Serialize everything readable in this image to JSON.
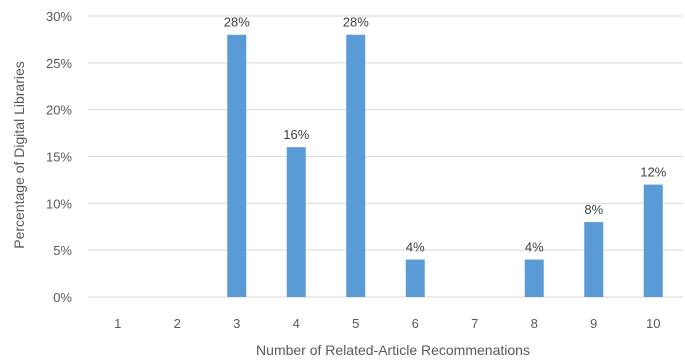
{
  "chart_data": {
    "type": "bar",
    "categories": [
      "1",
      "2",
      "3",
      "4",
      "5",
      "6",
      "7",
      "8",
      "9",
      "10"
    ],
    "values": [
      0,
      0,
      28,
      16,
      28,
      4,
      0,
      4,
      8,
      12
    ],
    "data_labels": [
      "",
      "",
      "28%",
      "16%",
      "28%",
      "4%",
      "",
      "4%",
      "8%",
      "12%"
    ],
    "y_ticks": [
      0,
      5,
      10,
      15,
      20,
      25,
      30
    ],
    "y_tick_labels": [
      "0%",
      "5%",
      "10%",
      "15%",
      "20%",
      "25%",
      "30%"
    ],
    "ylim": [
      0,
      30
    ],
    "xlabel": "Number of Related-Article Recommenations",
    "ylabel": "Percentage of Digital Libraries",
    "grid": true,
    "legend": "none",
    "bar_color": "#5b9bd5"
  }
}
